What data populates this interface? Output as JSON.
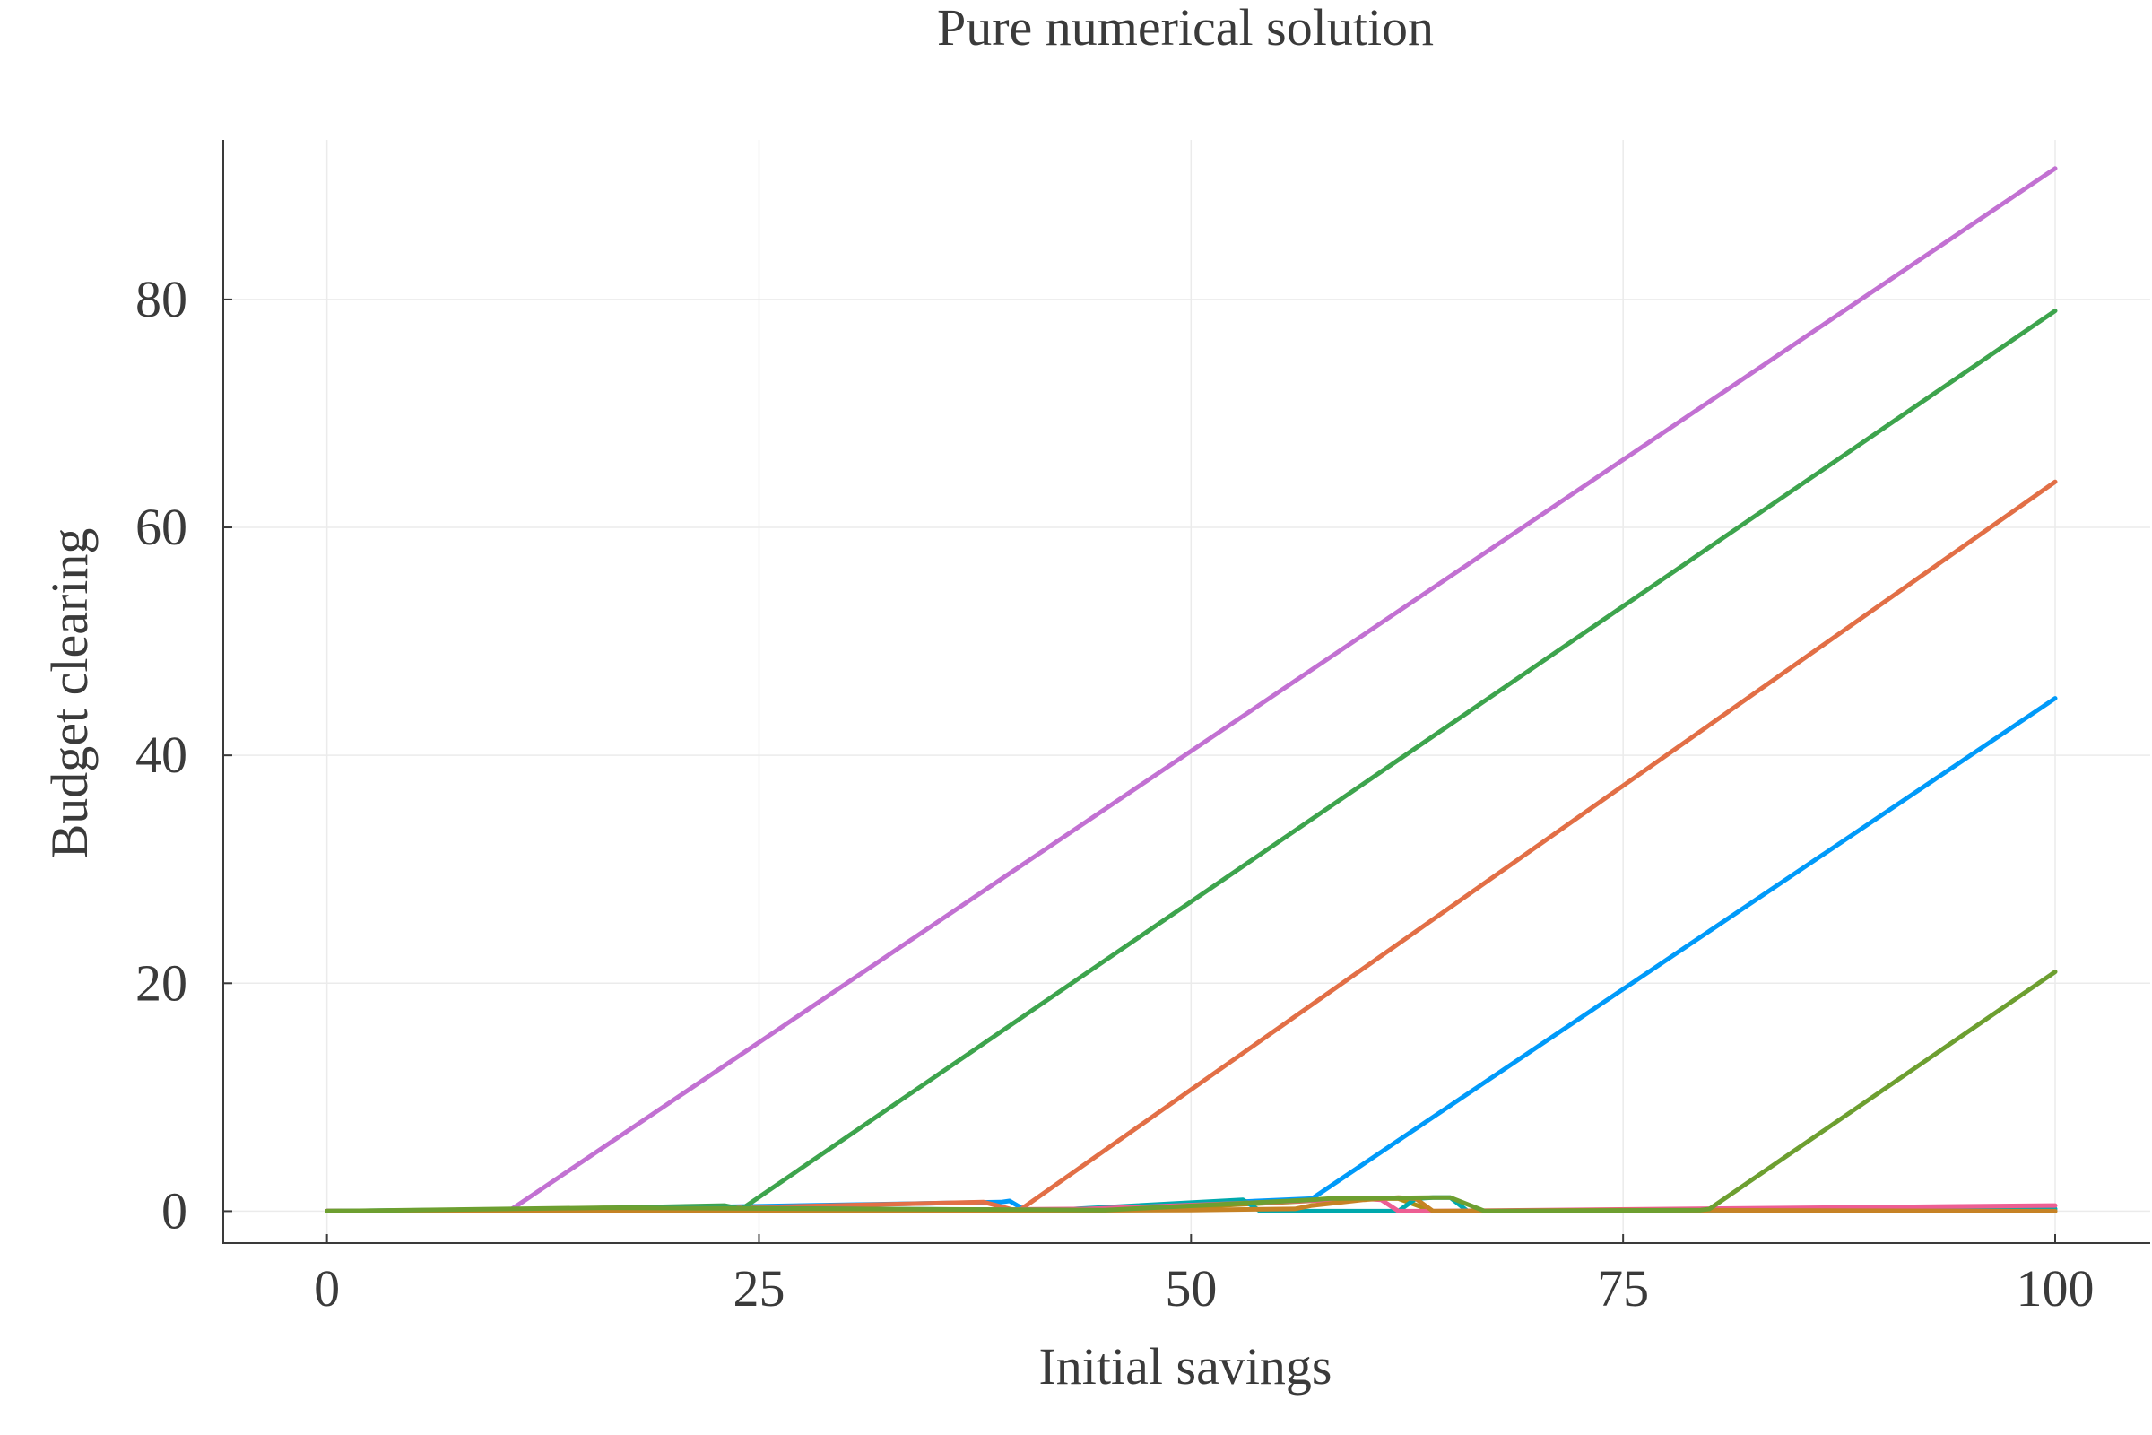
{
  "chart_data": {
    "type": "line",
    "title": "Pure numerical solution",
    "xlabel": "Initial savings",
    "ylabel": "Budget clearing",
    "xlim": [
      -6,
      105.5
    ],
    "ylim": [
      -2.8,
      94
    ],
    "xticks": [
      0,
      25,
      50,
      75,
      100
    ],
    "xtick_labels": [
      "0",
      "25",
      "50",
      "75",
      "100"
    ],
    "yticks": [
      0,
      20,
      40,
      60,
      80
    ],
    "ytick_labels": [
      "0",
      "20",
      "40",
      "60",
      "80"
    ],
    "grid": true,
    "legend": "none",
    "series": [
      {
        "color": "#009af9",
        "x": [
          0,
          6,
          12,
          39,
          39.5,
          40.5,
          57,
          100
        ],
        "y": [
          0,
          0,
          0.1,
          0.8,
          0.9,
          0,
          1.1,
          45
        ]
      },
      {
        "color": "#e26f46",
        "x": [
          0,
          15,
          38,
          39,
          40,
          100
        ],
        "y": [
          0,
          0,
          0.8,
          0.4,
          0,
          64
        ]
      },
      {
        "color": "#3da44d",
        "x": [
          0,
          10,
          23,
          24,
          100
        ],
        "y": [
          0,
          0.1,
          0.5,
          0.2,
          79
        ]
      },
      {
        "color": "#c271d2",
        "x": [
          0,
          10.5,
          11,
          100
        ],
        "y": [
          0,
          0,
          0.5,
          91.5
        ]
      },
      {
        "color": "#ac8d18",
        "x": [
          0,
          16,
          32,
          48,
          58,
          59,
          62,
          64,
          70,
          80,
          90,
          100
        ],
        "y": [
          0,
          0,
          0.1,
          0.2,
          1.0,
          1.1,
          1.1,
          0,
          0,
          0.1,
          0.2,
          0
        ]
      },
      {
        "color": "#00a9ad",
        "x": [
          0,
          20,
          42,
          53,
          54,
          62,
          63,
          64,
          65,
          66,
          100
        ],
        "y": [
          0,
          0.3,
          0.1,
          1.0,
          0,
          0,
          1.1,
          1.2,
          1.2,
          0,
          0.2
        ]
      },
      {
        "color": "#ed5e93",
        "x": [
          0,
          26,
          44,
          60,
          61,
          62,
          64,
          100
        ],
        "y": [
          0,
          0,
          0.2,
          1.1,
          1.0,
          0,
          0,
          0.5
        ]
      },
      {
        "color": "#c68225",
        "x": [
          0,
          30,
          50,
          56,
          57,
          60,
          61,
          62,
          63,
          64,
          75,
          100
        ],
        "y": [
          0,
          0,
          0.1,
          0.2,
          0.5,
          1.0,
          1.1,
          1.2,
          1.1,
          0,
          0.1,
          0
        ]
      },
      {
        "color": "#6d9f30",
        "x": [
          0,
          16,
          30,
          45,
          57,
          58,
          64,
          65,
          67,
          79.5,
          80,
          100
        ],
        "y": [
          0,
          0.3,
          0.2,
          0.1,
          1.0,
          1.1,
          1.2,
          1.2,
          0,
          0.1,
          0.2,
          21
        ]
      }
    ]
  }
}
